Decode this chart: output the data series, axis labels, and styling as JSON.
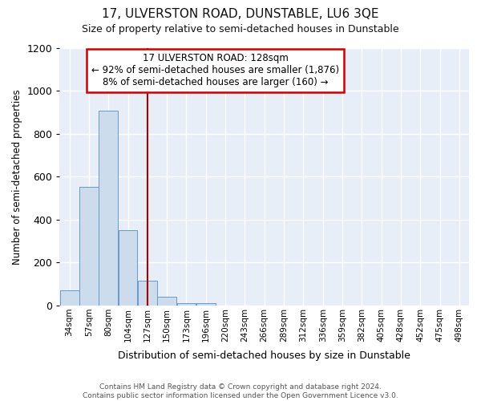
{
  "title": "17, ULVERSTON ROAD, DUNSTABLE, LU6 3QE",
  "subtitle": "Size of property relative to semi-detached houses in Dunstable",
  "xlabel": "Distribution of semi-detached houses by size in Dunstable",
  "ylabel": "Number of semi-detached properties",
  "bar_color": "#cddcec",
  "bar_edge_color": "#6699cc",
  "background_color": "#e8eef8",
  "grid_color": "#ffffff",
  "categories": [
    "34sqm",
    "57sqm",
    "80sqm",
    "104sqm",
    "127sqm",
    "150sqm",
    "173sqm",
    "196sqm",
    "220sqm",
    "243sqm",
    "266sqm",
    "289sqm",
    "312sqm",
    "336sqm",
    "359sqm",
    "382sqm",
    "405sqm",
    "428sqm",
    "452sqm",
    "475sqm",
    "498sqm"
  ],
  "values": [
    70,
    555,
    910,
    350,
    115,
    40,
    12,
    12,
    0,
    0,
    0,
    0,
    0,
    0,
    0,
    0,
    0,
    0,
    0,
    0,
    0
  ],
  "ylim": [
    0,
    1200
  ],
  "yticks": [
    0,
    200,
    400,
    600,
    800,
    1000,
    1200
  ],
  "property_bin_index": 4,
  "property_label": "17 ULVERSTON ROAD: 128sqm",
  "pct_smaller": 92,
  "n_smaller": 1876,
  "pct_larger": 8,
  "n_larger": 160,
  "vline_color": "#aa0000",
  "annotation_box_edgecolor": "#cc0000",
  "footer_line1": "Contains HM Land Registry data © Crown copyright and database right 2024.",
  "footer_line2": "Contains public sector information licensed under the Open Government Licence v3.0."
}
